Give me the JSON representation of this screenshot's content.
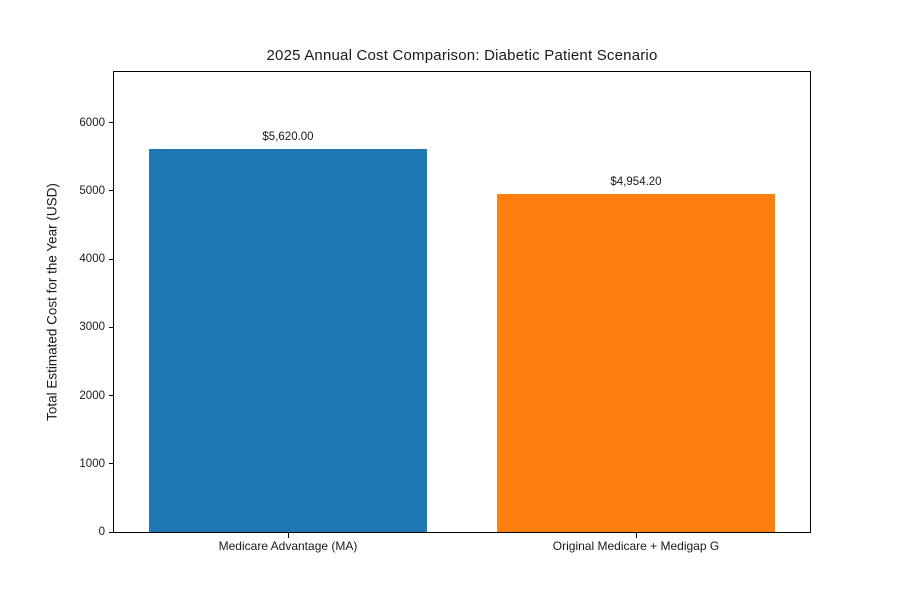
{
  "chart_data": {
    "type": "bar",
    "title": "2025 Annual Cost Comparison: Diabetic Patient Scenario",
    "xlabel": "",
    "ylabel": "Total Estimated Cost for the Year (USD)",
    "categories": [
      "Medicare Advantage (MA)",
      "Original Medicare + Medigap G"
    ],
    "values": [
      5620.0,
      4954.2
    ],
    "value_labels": [
      "$5,620.00",
      "$4,954.20"
    ],
    "bar_colors": [
      "#1f77b4",
      "#ff7f0e"
    ],
    "ylim": [
      0,
      6744
    ],
    "yticks": [
      0,
      1000,
      2000,
      3000,
      4000,
      5000,
      6000
    ],
    "ytick_labels": [
      "0",
      "1000",
      "2000",
      "3000",
      "4000",
      "5000",
      "6000"
    ],
    "grid": false,
    "legend": null,
    "bar_width_fraction": 0.4,
    "bar_center_fractions": [
      0.25,
      0.75
    ]
  }
}
